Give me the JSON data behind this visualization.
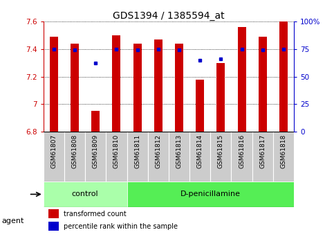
{
  "title": "GDS1394 / 1385594_at",
  "categories": [
    "GSM61807",
    "GSM61808",
    "GSM61809",
    "GSM61810",
    "GSM61811",
    "GSM61812",
    "GSM61813",
    "GSM61814",
    "GSM61815",
    "GSM61816",
    "GSM61817",
    "GSM61818"
  ],
  "bar_values": [
    7.49,
    7.44,
    6.95,
    7.5,
    7.44,
    7.47,
    7.44,
    7.18,
    7.3,
    7.56,
    7.49,
    7.6
  ],
  "percentile_rank": [
    75,
    74,
    62,
    75,
    74,
    75,
    74,
    65,
    66,
    75,
    74,
    75
  ],
  "ylim_left": [
    6.8,
    7.6
  ],
  "ylim_right": [
    0,
    100
  ],
  "yticks_left": [
    6.8,
    7.0,
    7.2,
    7.4,
    7.6
  ],
  "yticks_right": [
    0,
    25,
    50,
    75,
    100
  ],
  "ytick_labels_left": [
    "6.8",
    "7",
    "7.2",
    "7.4",
    "7.6"
  ],
  "ytick_labels_right": [
    "0",
    "25",
    "50",
    "75",
    "100%"
  ],
  "bar_color": "#cc0000",
  "dot_color": "#0000cc",
  "control_count": 4,
  "treatment_count": 8,
  "control_label": "control",
  "treatment_label": "D-penicillamine",
  "agent_label": "agent",
  "control_color": "#aaffaa",
  "treatment_color": "#55ee55",
  "tick_bg_color": "#cccccc",
  "legend_bar_label": "transformed count",
  "legend_dot_label": "percentile rank within the sample",
  "left_axis_color": "#cc0000",
  "right_axis_color": "#0000cc",
  "title_fontsize": 10,
  "tick_label_fontsize": 6.5,
  "group_label_fontsize": 8,
  "legend_fontsize": 7,
  "bar_width": 0.4
}
